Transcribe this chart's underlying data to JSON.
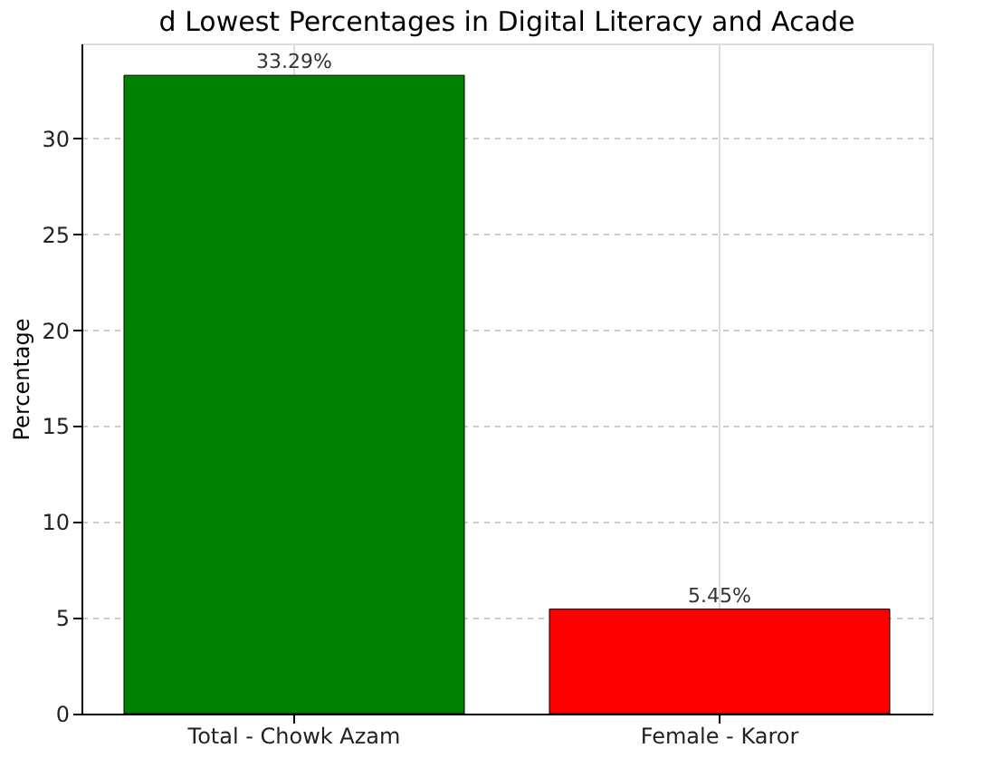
{
  "chart_data": {
    "type": "bar",
    "title": "d Lowest Percentages in Digital Literacy and Acade",
    "ylabel": "Percentage",
    "categories": [
      "Total - Chowk Azam",
      "Female - Karor"
    ],
    "values": [
      33.29,
      5.45
    ],
    "colors": [
      "#008000",
      "#ff0000"
    ],
    "value_labels": [
      "33.29%",
      "5.45%"
    ],
    "ylim": [
      0,
      34.95
    ],
    "yticks": [
      0,
      5,
      10,
      15,
      20,
      25,
      30
    ],
    "grid": true
  }
}
